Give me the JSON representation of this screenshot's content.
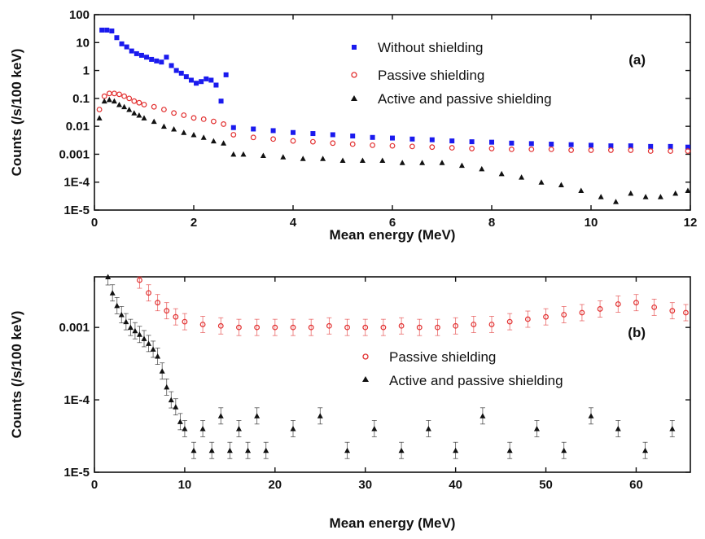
{
  "colors": {
    "without": "#1a1aee",
    "passive": "#e23030",
    "active": "#111111"
  },
  "chart_data": [
    {
      "type": "scatter",
      "panel_label": "(a)",
      "xlabel": "Mean energy (MeV)",
      "ylabel": "Counts (/s/100 keV)",
      "x_range": [
        0,
        12
      ],
      "y_range": [
        1e-05,
        100
      ],
      "y_scale": "log",
      "x_ticks": [
        0,
        2,
        4,
        6,
        8,
        10,
        12
      ],
      "x_tick_labels": [
        "0",
        "2",
        "4",
        "6",
        "8",
        "10",
        "12"
      ],
      "y_ticks": [
        100,
        10,
        1,
        0.1,
        0.01,
        0.001,
        0.0001,
        1e-05
      ],
      "y_tick_labels": [
        "100",
        "10",
        "1",
        "0.1",
        "0.01",
        "0.001",
        "1E-4",
        "1E-5"
      ],
      "legend_position": "top-right",
      "series": [
        {
          "name": "Without shielding",
          "marker": "square",
          "color": "#1a1aee",
          "x": [
            0.15,
            0.25,
            0.35,
            0.45,
            0.55,
            0.65,
            0.75,
            0.85,
            0.95,
            1.05,
            1.15,
            1.25,
            1.35,
            1.45,
            1.55,
            1.65,
            1.75,
            1.85,
            1.95,
            2.05,
            2.15,
            2.25,
            2.35,
            2.45,
            2.55,
            2.65,
            2.8,
            3.2,
            3.6,
            4.0,
            4.4,
            4.8,
            5.2,
            5.6,
            6.0,
            6.4,
            6.8,
            7.2,
            7.6,
            8.0,
            8.4,
            8.8,
            9.2,
            9.6,
            10.0,
            10.4,
            10.8,
            11.2,
            11.6,
            11.95
          ],
          "y": [
            28,
            28,
            26,
            15,
            9,
            7,
            5,
            4,
            3.5,
            3,
            2.5,
            2.2,
            2,
            3,
            1.5,
            1.0,
            0.8,
            0.6,
            0.45,
            0.35,
            0.4,
            0.5,
            0.45,
            0.3,
            0.08,
            0.7,
            0.009,
            0.008,
            0.007,
            0.006,
            0.0055,
            0.005,
            0.0045,
            0.004,
            0.0038,
            0.0035,
            0.0033,
            0.003,
            0.0028,
            0.0027,
            0.0025,
            0.0024,
            0.0023,
            0.0022,
            0.0021,
            0.002,
            0.002,
            0.0019,
            0.0019,
            0.0018
          ]
        },
        {
          "name": "Passive shielding",
          "marker": "open-circle",
          "color": "#e23030",
          "x": [
            0.1,
            0.2,
            0.3,
            0.4,
            0.5,
            0.6,
            0.7,
            0.8,
            0.9,
            1.0,
            1.2,
            1.4,
            1.6,
            1.8,
            2.0,
            2.2,
            2.4,
            2.6,
            2.8,
            3.2,
            3.6,
            4.0,
            4.4,
            4.8,
            5.2,
            5.6,
            6.0,
            6.4,
            6.8,
            7.2,
            7.6,
            8.0,
            8.4,
            8.8,
            9.2,
            9.6,
            10.0,
            10.4,
            10.8,
            11.2,
            11.6,
            11.95
          ],
          "y": [
            0.04,
            0.12,
            0.15,
            0.15,
            0.14,
            0.12,
            0.1,
            0.08,
            0.07,
            0.06,
            0.05,
            0.04,
            0.03,
            0.025,
            0.02,
            0.018,
            0.015,
            0.012,
            0.005,
            0.004,
            0.0035,
            0.003,
            0.0028,
            0.0025,
            0.0023,
            0.0021,
            0.002,
            0.0019,
            0.0018,
            0.0017,
            0.0016,
            0.0016,
            0.0015,
            0.0015,
            0.0015,
            0.0014,
            0.0014,
            0.0014,
            0.0014,
            0.0013,
            0.0013,
            0.0013
          ]
        },
        {
          "name": "Active and passive shielding",
          "marker": "triangle",
          "color": "#111111",
          "x": [
            0.1,
            0.2,
            0.3,
            0.4,
            0.5,
            0.6,
            0.7,
            0.8,
            0.9,
            1.0,
            1.2,
            1.4,
            1.6,
            1.8,
            2.0,
            2.2,
            2.4,
            2.6,
            2.8,
            3.0,
            3.4,
            3.8,
            4.2,
            4.6,
            5.0,
            5.4,
            5.8,
            6.2,
            6.6,
            7.0,
            7.4,
            7.8,
            8.2,
            8.6,
            9.0,
            9.4,
            9.8,
            10.2,
            10.5,
            10.8,
            11.1,
            11.4,
            11.7,
            11.95
          ],
          "y": [
            0.02,
            0.08,
            0.09,
            0.08,
            0.06,
            0.05,
            0.04,
            0.03,
            0.025,
            0.02,
            0.015,
            0.01,
            0.008,
            0.006,
            0.005,
            0.004,
            0.003,
            0.0025,
            0.001,
            0.001,
            0.0009,
            0.0008,
            0.0007,
            0.0007,
            0.0006,
            0.0006,
            0.0006,
            0.0005,
            0.0005,
            0.0005,
            0.0004,
            0.0003,
            0.0002,
            0.00015,
            0.0001,
            8e-05,
            5e-05,
            3e-05,
            2e-05,
            4e-05,
            3e-05,
            3e-05,
            4e-05,
            5e-05
          ]
        }
      ]
    },
    {
      "type": "scatter",
      "panel_label": "(b)",
      "xlabel": "Mean energy (MeV)",
      "ylabel": "Counts (/s/100 keV)",
      "x_range": [
        0,
        66
      ],
      "y_range": [
        1e-05,
        0.005
      ],
      "y_scale": "log",
      "x_ticks": [
        0,
        10,
        20,
        30,
        40,
        50,
        60
      ],
      "x_tick_labels": [
        "0",
        "10",
        "20",
        "30",
        "40",
        "50",
        "60"
      ],
      "y_ticks": [
        0.001,
        0.0001,
        1e-05
      ],
      "y_tick_labels": [
        "0.001",
        "1E-4",
        "1E-5"
      ],
      "legend_position": "center-right",
      "series": [
        {
          "name": "Passive shielding",
          "marker": "open-circle",
          "color": "#e23030",
          "error_bars": true,
          "x": [
            5,
            6,
            7,
            8,
            9,
            10,
            12,
            14,
            16,
            18,
            20,
            22,
            24,
            26,
            28,
            30,
            32,
            34,
            36,
            38,
            40,
            42,
            44,
            46,
            48,
            50,
            52,
            54,
            56,
            58,
            60,
            62,
            64,
            65.5
          ],
          "y": [
            0.0045,
            0.003,
            0.0022,
            0.0017,
            0.0014,
            0.0012,
            0.0011,
            0.00105,
            0.001,
            0.001,
            0.001,
            0.001,
            0.001,
            0.00105,
            0.001,
            0.001,
            0.001,
            0.00105,
            0.001,
            0.001,
            0.00105,
            0.0011,
            0.0011,
            0.0012,
            0.0013,
            0.0014,
            0.0015,
            0.0016,
            0.0018,
            0.0021,
            0.0022,
            0.0019,
            0.0017,
            0.0016
          ]
        },
        {
          "name": "Active and passive shielding",
          "marker": "triangle",
          "color": "#111111",
          "error_bars": true,
          "x": [
            1.5,
            2,
            2.5,
            3,
            3.5,
            4,
            4.5,
            5,
            5.5,
            6,
            6.5,
            7,
            7.5,
            8,
            8.5,
            9,
            9.5,
            10,
            11,
            12,
            13,
            14,
            15,
            16,
            17,
            18,
            19,
            22,
            25,
            28,
            31,
            34,
            37,
            40,
            43,
            46,
            49,
            52,
            55,
            58,
            61,
            64
          ],
          "y": [
            0.005,
            0.003,
            0.002,
            0.0015,
            0.0012,
            0.001,
            0.0009,
            0.0008,
            0.0007,
            0.0006,
            0.0005,
            0.0004,
            0.00025,
            0.00015,
            0.0001,
            8e-05,
            5e-05,
            4e-05,
            2e-05,
            4e-05,
            2e-05,
            6e-05,
            2e-05,
            4e-05,
            2e-05,
            6e-05,
            2e-05,
            4e-05,
            6e-05,
            2e-05,
            4e-05,
            2e-05,
            4e-05,
            2e-05,
            6e-05,
            2e-05,
            4e-05,
            2e-05,
            6e-05,
            4e-05,
            2e-05,
            4e-05
          ]
        }
      ]
    }
  ]
}
